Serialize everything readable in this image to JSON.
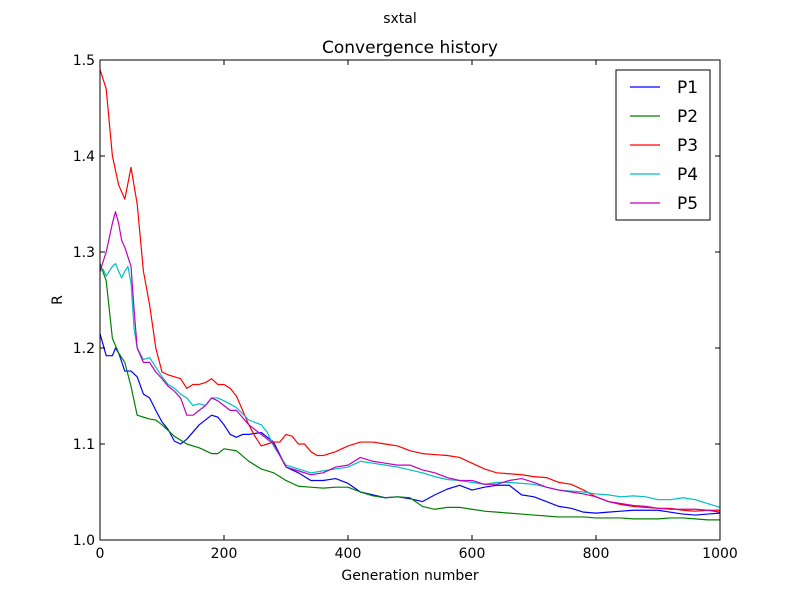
{
  "figure": {
    "suptitle": "sxtal"
  },
  "chart_data": {
    "type": "line",
    "title": "Convergence history",
    "xlabel": "Generation number",
    "ylabel": "R",
    "xlim": [
      0,
      1000
    ],
    "ylim": [
      1.0,
      1.5
    ],
    "xticks": [
      0,
      200,
      400,
      600,
      800,
      1000
    ],
    "xtick_labels": [
      "0",
      "200",
      "400",
      "600",
      "800",
      "1000"
    ],
    "yticks": [
      1.0,
      1.1,
      1.2,
      1.3,
      1.4,
      1.5
    ],
    "ytick_labels": [
      "1.0",
      "1.1",
      "1.2",
      "1.3",
      "1.4",
      "1.5"
    ],
    "grid": false,
    "legend": "top-right",
    "series": [
      {
        "name": "P1",
        "color": "#0000ff",
        "x": [
          0,
          10,
          20,
          25,
          30,
          40,
          50,
          60,
          70,
          80,
          90,
          100,
          110,
          120,
          130,
          140,
          160,
          180,
          190,
          200,
          210,
          220,
          230,
          240,
          260,
          280,
          300,
          320,
          340,
          360,
          380,
          400,
          420,
          440,
          460,
          480,
          500,
          520,
          540,
          560,
          580,
          600,
          620,
          640,
          660,
          680,
          700,
          720,
          740,
          760,
          780,
          800,
          820,
          840,
          860,
          880,
          900,
          920,
          940,
          960,
          980,
          1000
        ],
        "y": [
          1.215,
          1.192,
          1.192,
          1.2,
          1.195,
          1.176,
          1.176,
          1.17,
          1.152,
          1.148,
          1.135,
          1.123,
          1.115,
          1.103,
          1.1,
          1.105,
          1.12,
          1.13,
          1.128,
          1.12,
          1.11,
          1.107,
          1.11,
          1.11,
          1.112,
          1.102,
          1.076,
          1.07,
          1.062,
          1.062,
          1.064,
          1.059,
          1.05,
          1.047,
          1.044,
          1.045,
          1.043,
          1.04,
          1.047,
          1.053,
          1.057,
          1.052,
          1.055,
          1.057,
          1.057,
          1.047,
          1.045,
          1.04,
          1.035,
          1.033,
          1.029,
          1.028,
          1.029,
          1.03,
          1.031,
          1.031,
          1.031,
          1.029,
          1.027,
          1.026,
          1.027,
          1.028
        ]
      },
      {
        "name": "P2",
        "color": "#008000",
        "x": [
          0,
          10,
          20,
          30,
          40,
          50,
          60,
          70,
          80,
          90,
          100,
          120,
          140,
          160,
          180,
          190,
          200,
          220,
          240,
          260,
          280,
          300,
          320,
          340,
          360,
          380,
          400,
          420,
          440,
          460,
          480,
          500,
          520,
          540,
          560,
          580,
          600,
          620,
          640,
          660,
          680,
          700,
          720,
          740,
          760,
          780,
          800,
          820,
          840,
          860,
          880,
          900,
          920,
          940,
          960,
          980,
          1000
        ],
        "y": [
          1.288,
          1.27,
          1.21,
          1.195,
          1.185,
          1.16,
          1.13,
          1.128,
          1.126,
          1.125,
          1.12,
          1.108,
          1.1,
          1.096,
          1.09,
          1.09,
          1.095,
          1.093,
          1.082,
          1.074,
          1.07,
          1.062,
          1.056,
          1.055,
          1.054,
          1.055,
          1.055,
          1.05,
          1.046,
          1.044,
          1.045,
          1.044,
          1.035,
          1.032,
          1.034,
          1.034,
          1.032,
          1.03,
          1.029,
          1.028,
          1.027,
          1.026,
          1.025,
          1.024,
          1.024,
          1.024,
          1.023,
          1.023,
          1.023,
          1.022,
          1.022,
          1.022,
          1.023,
          1.023,
          1.022,
          1.021,
          1.021
        ]
      },
      {
        "name": "P3",
        "color": "#ff0000",
        "x": [
          0,
          10,
          20,
          30,
          40,
          50,
          60,
          70,
          80,
          90,
          100,
          110,
          120,
          130,
          140,
          150,
          160,
          170,
          180,
          190,
          200,
          210,
          220,
          230,
          240,
          250,
          260,
          270,
          280,
          290,
          300,
          310,
          320,
          330,
          340,
          350,
          360,
          380,
          400,
          420,
          440,
          460,
          480,
          500,
          520,
          540,
          560,
          580,
          600,
          620,
          640,
          660,
          680,
          700,
          720,
          740,
          760,
          780,
          800,
          820,
          840,
          860,
          880,
          900,
          920,
          940,
          960,
          980,
          1000
        ],
        "y": [
          1.49,
          1.47,
          1.4,
          1.37,
          1.355,
          1.388,
          1.35,
          1.28,
          1.245,
          1.2,
          1.175,
          1.172,
          1.17,
          1.168,
          1.158,
          1.162,
          1.162,
          1.164,
          1.168,
          1.162,
          1.162,
          1.158,
          1.15,
          1.135,
          1.12,
          1.108,
          1.098,
          1.1,
          1.102,
          1.102,
          1.11,
          1.108,
          1.1,
          1.1,
          1.092,
          1.088,
          1.088,
          1.092,
          1.098,
          1.102,
          1.102,
          1.1,
          1.098,
          1.093,
          1.09,
          1.089,
          1.088,
          1.086,
          1.08,
          1.074,
          1.07,
          1.069,
          1.068,
          1.066,
          1.065,
          1.06,
          1.058,
          1.052,
          1.045,
          1.04,
          1.037,
          1.035,
          1.034,
          1.033,
          1.033,
          1.031,
          1.03,
          1.031,
          1.031
        ]
      },
      {
        "name": "P4",
        "color": "#00bfbf",
        "x": [
          0,
          5,
          10,
          20,
          25,
          30,
          35,
          40,
          45,
          50,
          55,
          60,
          70,
          80,
          90,
          100,
          110,
          120,
          130,
          140,
          150,
          160,
          170,
          180,
          190,
          200,
          220,
          240,
          260,
          270,
          280,
          300,
          320,
          340,
          360,
          380,
          400,
          420,
          440,
          460,
          480,
          500,
          520,
          540,
          560,
          580,
          600,
          620,
          640,
          660,
          680,
          700,
          720,
          740,
          760,
          780,
          800,
          820,
          840,
          860,
          880,
          900,
          920,
          940,
          960,
          980,
          1000
        ],
        "y": [
          1.28,
          1.282,
          1.275,
          1.285,
          1.288,
          1.28,
          1.273,
          1.28,
          1.285,
          1.268,
          1.22,
          1.2,
          1.188,
          1.19,
          1.18,
          1.17,
          1.162,
          1.158,
          1.152,
          1.148,
          1.14,
          1.142,
          1.14,
          1.148,
          1.148,
          1.145,
          1.138,
          1.125,
          1.12,
          1.112,
          1.098,
          1.078,
          1.074,
          1.07,
          1.072,
          1.074,
          1.076,
          1.082,
          1.08,
          1.078,
          1.076,
          1.073,
          1.07,
          1.066,
          1.063,
          1.062,
          1.06,
          1.058,
          1.06,
          1.06,
          1.059,
          1.058,
          1.055,
          1.052,
          1.051,
          1.05,
          1.048,
          1.047,
          1.045,
          1.046,
          1.045,
          1.042,
          1.042,
          1.044,
          1.042,
          1.038,
          1.034
        ]
      },
      {
        "name": "P5",
        "color": "#bf00bf",
        "x": [
          0,
          10,
          15,
          20,
          25,
          30,
          35,
          40,
          45,
          50,
          55,
          60,
          70,
          80,
          90,
          100,
          110,
          120,
          130,
          140,
          150,
          160,
          170,
          180,
          190,
          200,
          210,
          220,
          240,
          260,
          270,
          280,
          300,
          320,
          340,
          360,
          380,
          400,
          420,
          440,
          460,
          480,
          500,
          520,
          540,
          560,
          580,
          600,
          620,
          640,
          660,
          680,
          700,
          720,
          740,
          760,
          780,
          800,
          820,
          840,
          860,
          880,
          900,
          920,
          940,
          960,
          980,
          1000
        ],
        "y": [
          1.28,
          1.3,
          1.315,
          1.33,
          1.342,
          1.33,
          1.312,
          1.305,
          1.295,
          1.285,
          1.24,
          1.2,
          1.185,
          1.185,
          1.175,
          1.168,
          1.16,
          1.155,
          1.148,
          1.13,
          1.13,
          1.135,
          1.14,
          1.148,
          1.145,
          1.14,
          1.135,
          1.135,
          1.12,
          1.11,
          1.105,
          1.1,
          1.076,
          1.072,
          1.068,
          1.07,
          1.076,
          1.078,
          1.086,
          1.082,
          1.08,
          1.078,
          1.078,
          1.073,
          1.07,
          1.065,
          1.062,
          1.062,
          1.058,
          1.058,
          1.062,
          1.064,
          1.06,
          1.055,
          1.052,
          1.05,
          1.048,
          1.045,
          1.04,
          1.038,
          1.036,
          1.035,
          1.033,
          1.032,
          1.032,
          1.032,
          1.031,
          1.029
        ]
      }
    ]
  }
}
